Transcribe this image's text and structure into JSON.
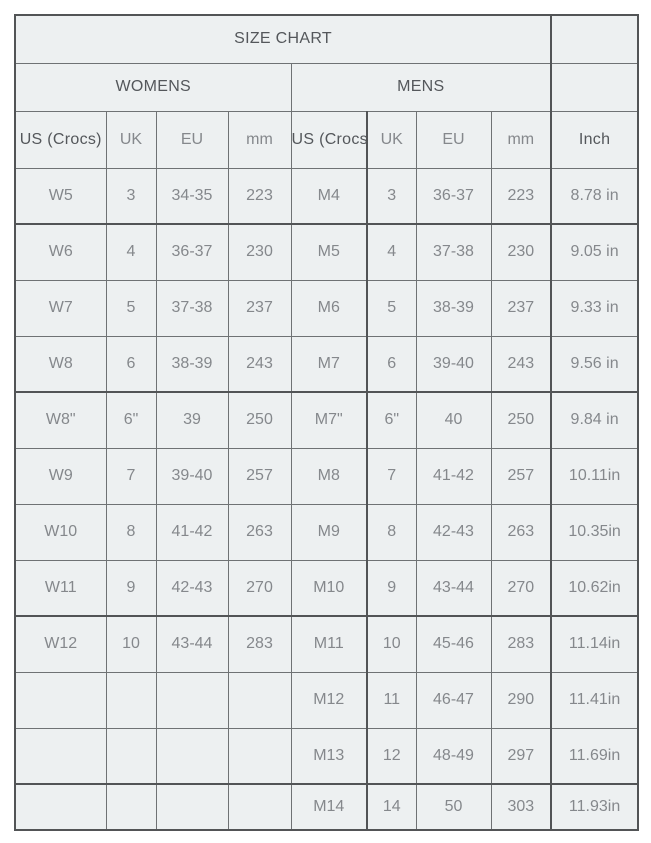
{
  "colors": {
    "page-bg": "#ffffff",
    "cell-bg": "#edf0f1",
    "border-thin": "#6f7274",
    "border-thick": "#525456",
    "text-dark": "#54575b",
    "text-light": "#85888c"
  },
  "table": {
    "title": "SIZE CHART",
    "group_headers": {
      "womens": "WOMENS",
      "mens": "MENS"
    },
    "column_headers": [
      "US (Crocs)",
      "UK",
      "EU",
      "mm",
      "US (Crocs)",
      "UK",
      "EU",
      "mm",
      "Inch"
    ],
    "rows": [
      [
        "W5",
        "3",
        "34-35",
        "223",
        "M4",
        "3",
        "36-37",
        "223",
        "8.78 in"
      ],
      [
        "W6",
        "4",
        "36-37",
        "230",
        "M5",
        "4",
        "37-38",
        "230",
        "9.05 in"
      ],
      [
        "W7",
        "5",
        "37-38",
        "237",
        "M6",
        "5",
        "38-39",
        "237",
        "9.33 in"
      ],
      [
        "W8",
        "6",
        "38-39",
        "243",
        "M7",
        "6",
        "39-40",
        "243",
        "9.56 in"
      ],
      [
        "W8\"",
        "6\"",
        "39",
        "250",
        "M7\"",
        "6\"",
        "40",
        "250",
        "9.84 in"
      ],
      [
        "W9",
        "7",
        "39-40",
        "257",
        "M8",
        "7",
        "41-42",
        "257",
        "10.11in"
      ],
      [
        "W10",
        "8",
        "41-42",
        "263",
        "M9",
        "8",
        "42-43",
        "263",
        "10.35in"
      ],
      [
        "W11",
        "9",
        "42-43",
        "270",
        "M10",
        "9",
        "43-44",
        "270",
        "10.62in"
      ],
      [
        "W12",
        "10",
        "43-44",
        "283",
        "M11",
        "10",
        "45-46",
        "283",
        "11.14in"
      ],
      [
        "",
        "",
        "",
        "",
        "M12",
        "11",
        "46-47",
        "290",
        "11.41in"
      ],
      [
        "",
        "",
        "",
        "",
        "M13",
        "12",
        "48-49",
        "297",
        "11.69in"
      ],
      [
        "",
        "",
        "",
        "",
        "M14",
        "14",
        "50",
        "303",
        "11.93in"
      ]
    ]
  },
  "chart_data": {
    "type": "table",
    "title": "SIZE CHART",
    "column_groups": [
      "WOMENS",
      "WOMENS",
      "WOMENS",
      "WOMENS",
      "MENS",
      "MENS",
      "MENS",
      "MENS",
      ""
    ],
    "columns": [
      "US (Crocs)",
      "UK",
      "EU",
      "mm",
      "US (Crocs)",
      "UK",
      "EU",
      "mm",
      "Inch"
    ],
    "rows": [
      [
        "W5",
        "3",
        "34-35",
        "223",
        "M4",
        "3",
        "36-37",
        "223",
        "8.78 in"
      ],
      [
        "W6",
        "4",
        "36-37",
        "230",
        "M5",
        "4",
        "37-38",
        "230",
        "9.05 in"
      ],
      [
        "W7",
        "5",
        "37-38",
        "237",
        "M6",
        "5",
        "38-39",
        "237",
        "9.33 in"
      ],
      [
        "W8",
        "6",
        "38-39",
        "243",
        "M7",
        "6",
        "39-40",
        "243",
        "9.56 in"
      ],
      [
        "W8\"",
        "6\"",
        "39",
        "250",
        "M7\"",
        "6\"",
        "40",
        "250",
        "9.84 in"
      ],
      [
        "W9",
        "7",
        "39-40",
        "257",
        "M8",
        "7",
        "41-42",
        "257",
        "10.11in"
      ],
      [
        "W10",
        "8",
        "41-42",
        "263",
        "M9",
        "8",
        "42-43",
        "263",
        "10.35in"
      ],
      [
        "W11",
        "9",
        "42-43",
        "270",
        "M10",
        "9",
        "43-44",
        "270",
        "10.62in"
      ],
      [
        "W12",
        "10",
        "43-44",
        "283",
        "M11",
        "10",
        "45-46",
        "283",
        "11.14in"
      ],
      [
        "",
        "",
        "",
        "",
        "M12",
        "11",
        "46-47",
        "290",
        "11.41in"
      ],
      [
        "",
        "",
        "",
        "",
        "M13",
        "12",
        "48-49",
        "297",
        "11.69in"
      ],
      [
        "",
        "",
        "",
        "",
        "M14",
        "14",
        "50",
        "303",
        "11.93in"
      ]
    ]
  }
}
